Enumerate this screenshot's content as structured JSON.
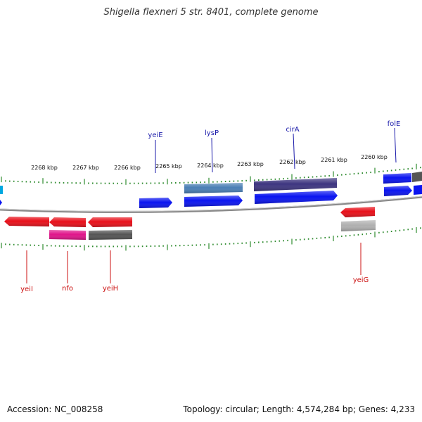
{
  "title": "Shigella flexneri 5 str. 8401, complete genome",
  "footer": {
    "accession": "Accession: NC_008258",
    "summary": "Topology: circular; Length: 4,574,284 bp; Genes: 4,233"
  },
  "colors": {
    "backbone": "#8a8a8a",
    "tick": "#2e8b2e",
    "plus_label": "#1a1aaa",
    "minus_label": "#cc1111",
    "blue": "#0a14f0",
    "steel": "#4a7fb5",
    "indigo": "#3d3580",
    "red": "#e8101a",
    "magenta": "#e0158a",
    "darkgray": "#555555",
    "lightgray": "#b0b0b0",
    "cyan": "#00a8e0"
  },
  "scale_labels": [
    "2268 kbp",
    "2267 kbp",
    "2266 kbp",
    "2265 kbp",
    "2264 kbp",
    "2263 kbp",
    "2262 kbp",
    "2261 kbp",
    "2260 kbp"
  ],
  "gene_labels": {
    "plus": [
      "yeiE",
      "lysP",
      "cirA",
      "folE"
    ],
    "minus": [
      "yeiI",
      "nfo",
      "yeiH",
      "yeiG"
    ]
  }
}
